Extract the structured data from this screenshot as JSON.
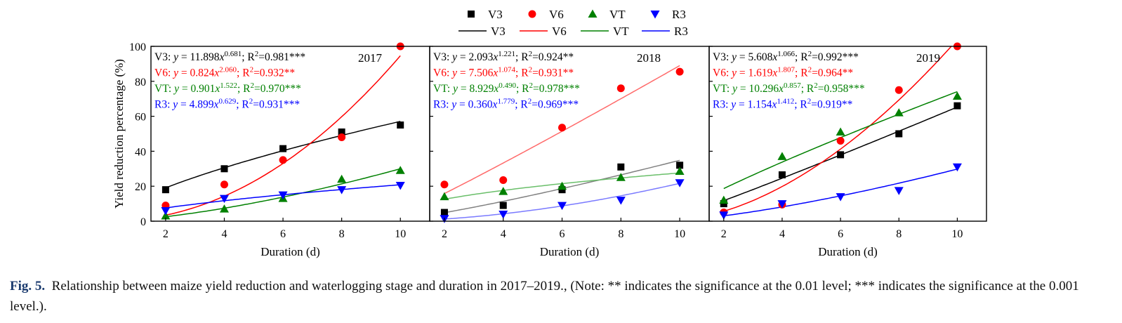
{
  "legend": {
    "markers": [
      {
        "name": "V3",
        "color": "#000000",
        "shape": "square"
      },
      {
        "name": "V6",
        "color": "#ff0000",
        "shape": "circle"
      },
      {
        "name": "VT",
        "color": "#008000",
        "shape": "triangle-up"
      },
      {
        "name": "R3",
        "color": "#0000ff",
        "shape": "triangle-down"
      }
    ],
    "lines": [
      {
        "name": "V3",
        "color": "#000000"
      },
      {
        "name": "V6",
        "color": "#ff0000"
      },
      {
        "name": "VT",
        "color": "#008000"
      },
      {
        "name": "R3",
        "color": "#0000ff"
      }
    ]
  },
  "chart_data": [
    {
      "type": "scatter",
      "title": "2017",
      "xlabel": "Duration (d)",
      "ylabel": "Yield reduction percentage (%)",
      "xlim": [
        1.5,
        11
      ],
      "ylim": [
        0,
        100
      ],
      "xticks": [
        "2",
        "4",
        "6",
        "8",
        "10"
      ],
      "yticks": [
        "0",
        "20",
        "40",
        "60",
        "80",
        "100"
      ],
      "grid": false,
      "series": [
        {
          "name": "V3",
          "color": "#000000",
          "marker": "square",
          "x": [
            2,
            4,
            6,
            8,
            10
          ],
          "y": [
            18,
            30,
            41.5,
            51,
            55
          ],
          "fit": {
            "a": 11.898,
            "b": 0.681
          },
          "line_color": "#000000"
        },
        {
          "name": "V6",
          "color": "#ff0000",
          "marker": "circle",
          "x": [
            2,
            4,
            6,
            8,
            10
          ],
          "y": [
            9,
            21,
            35,
            48,
            100
          ],
          "fit": {
            "a": 0.824,
            "b": 2.06
          },
          "line_color": "#ff0000"
        },
        {
          "name": "VT",
          "color": "#008000",
          "marker": "triangle-up",
          "x": [
            2,
            4,
            6,
            8,
            10
          ],
          "y": [
            3,
            7,
            13,
            24,
            29
          ],
          "fit": {
            "a": 0.901,
            "b": 1.522
          },
          "line_color": "#008000"
        },
        {
          "name": "R3",
          "color": "#0000ff",
          "marker": "triangle-down",
          "x": [
            2,
            4,
            6,
            8,
            10
          ],
          "y": [
            6,
            13,
            15,
            18,
            20.5
          ],
          "fit": {
            "a": 4.899,
            "b": 0.629
          },
          "line_color": "#0000ff"
        }
      ],
      "annotations": [
        {
          "stage": "V3",
          "color": "#000000",
          "coef": "11.898",
          "exp": "0.681",
          "r2": "0.981***"
        },
        {
          "stage": "V6",
          "color": "#ff0000",
          "coef": "0.824",
          "exp": "2.060",
          "r2": "0.932**"
        },
        {
          "stage": "VT",
          "color": "#008000",
          "coef": "0.901",
          "exp": "1.522",
          "r2": "0.970***"
        },
        {
          "stage": "R3",
          "color": "#0000ff",
          "coef": "4.899",
          "exp": "0.629",
          "r2": "0.931***"
        }
      ]
    },
    {
      "type": "scatter",
      "title": "2018",
      "xlabel": "Duration (d)",
      "ylabel": "",
      "xlim": [
        1.5,
        11
      ],
      "ylim": [
        0,
        100
      ],
      "xticks": [
        "2",
        "4",
        "6",
        "8",
        "10"
      ],
      "yticks": [],
      "grid": false,
      "series": [
        {
          "name": "V3",
          "color": "#000000",
          "marker": "square",
          "x": [
            2,
            4,
            6,
            8,
            10
          ],
          "y": [
            5,
            9,
            18,
            31,
            32
          ],
          "fit": {
            "a": 2.093,
            "b": 1.221
          },
          "line_color": "#808080"
        },
        {
          "name": "V6",
          "color": "#ff0000",
          "marker": "circle",
          "x": [
            2,
            4,
            6,
            8,
            10
          ],
          "y": [
            21,
            23.5,
            53.5,
            76,
            85.5
          ],
          "fit": {
            "a": 7.506,
            "b": 1.074
          },
          "line_color": "#ff6a6a"
        },
        {
          "name": "VT",
          "color": "#008000",
          "marker": "triangle-up",
          "x": [
            2,
            4,
            6,
            8,
            10
          ],
          "y": [
            14,
            17,
            20,
            25,
            28.5
          ],
          "fit": {
            "a": 8.929,
            "b": 0.49
          },
          "line_color": "#6abf6a"
        },
        {
          "name": "R3",
          "color": "#0000ff",
          "marker": "triangle-down",
          "x": [
            2,
            4,
            6,
            8,
            10
          ],
          "y": [
            1.5,
            4,
            9,
            12,
            22
          ],
          "fit": {
            "a": 0.36,
            "b": 1.779
          },
          "line_color": "#7a7aff"
        }
      ],
      "annotations": [
        {
          "stage": "V3",
          "color": "#000000",
          "coef": "2.093",
          "exp": "1.221",
          "r2": "0.924**"
        },
        {
          "stage": "V6",
          "color": "#ff0000",
          "coef": "7.506",
          "exp": "1.074",
          "r2": "0.931**"
        },
        {
          "stage": "VT",
          "color": "#008000",
          "coef": "8.929",
          "exp": "0.490",
          "r2": "0.978***"
        },
        {
          "stage": "R3",
          "color": "#0000ff",
          "coef": "0.360",
          "exp": "1.779",
          "r2": "0.969***"
        }
      ]
    },
    {
      "type": "scatter",
      "title": "2019",
      "xlabel": "Duration (d)",
      "ylabel": "",
      "xlim": [
        1.5,
        11
      ],
      "ylim": [
        0,
        100
      ],
      "xticks": [
        "2",
        "4",
        "6",
        "8",
        "10"
      ],
      "yticks": [],
      "grid": false,
      "series": [
        {
          "name": "V3",
          "color": "#000000",
          "marker": "square",
          "x": [
            2,
            4,
            6,
            8,
            10
          ],
          "y": [
            10,
            26.5,
            38,
            50,
            66
          ],
          "fit": {
            "a": 5.608,
            "b": 1.066
          },
          "line_color": "#000000"
        },
        {
          "name": "V6",
          "color": "#ff0000",
          "marker": "circle",
          "x": [
            2,
            4,
            6,
            8,
            10
          ],
          "y": [
            5,
            9.5,
            46,
            75,
            100
          ],
          "fit": {
            "a": 1.619,
            "b": 1.807
          },
          "line_color": "#ff0000"
        },
        {
          "name": "VT",
          "color": "#008000",
          "marker": "triangle-up",
          "x": [
            2,
            4,
            6,
            8,
            10
          ],
          "y": [
            12,
            37,
            51,
            62,
            71.5
          ],
          "fit": {
            "a": 10.296,
            "b": 0.857
          },
          "line_color": "#008000"
        },
        {
          "name": "R3",
          "color": "#0000ff",
          "marker": "triangle-down",
          "x": [
            2,
            4,
            6,
            8,
            10
          ],
          "y": [
            3.5,
            10,
            14,
            17.5,
            31
          ],
          "fit": {
            "a": 1.154,
            "b": 1.412
          },
          "line_color": "#0000ff"
        }
      ],
      "annotations": [
        {
          "stage": "V3",
          "color": "#000000",
          "coef": "5.608",
          "exp": "1.066",
          "r2": "0.992***"
        },
        {
          "stage": "V6",
          "color": "#ff0000",
          "coef": "1.619",
          "exp": "1.807",
          "r2": "0.964**"
        },
        {
          "stage": "VT",
          "color": "#008000",
          "coef": "10.296",
          "exp": "0.857",
          "r2": "0.958***"
        },
        {
          "stage": "R3",
          "color": "#0000ff",
          "coef": "1.154",
          "exp": "1.412",
          "r2": "0.919**"
        }
      ]
    }
  ],
  "caption": {
    "label": "Fig. 5.",
    "text": "Relationship between maize yield reduction and waterlogging stage and duration in 2017–2019., (Note: ** indicates the significance at the 0.01 level; *** indicates the significance at the 0.001 level.)."
  }
}
